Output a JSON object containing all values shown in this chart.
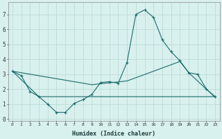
{
  "xlabel": "Humidex (Indice chaleur)",
  "bg_color": "#d8f0ee",
  "grid_color": "#b8d8d4",
  "line_color": "#1a6b6b",
  "xlim": [
    -0.5,
    23.5
  ],
  "ylim": [
    -0.1,
    7.8
  ],
  "xticks": [
    0,
    1,
    2,
    3,
    4,
    5,
    6,
    7,
    8,
    9,
    10,
    11,
    12,
    13,
    14,
    15,
    16,
    17,
    18,
    19,
    20,
    21,
    22,
    23
  ],
  "yticks": [
    0,
    1,
    2,
    3,
    4,
    5,
    6,
    7
  ],
  "series1_x": [
    0,
    1,
    2,
    3,
    4,
    5,
    6,
    7,
    8,
    9,
    10,
    11,
    12,
    13,
    14,
    15,
    16,
    17,
    18,
    19,
    20,
    21,
    22,
    23
  ],
  "series1_y": [
    3.2,
    2.9,
    1.85,
    1.5,
    1.0,
    0.45,
    0.45,
    1.05,
    1.3,
    1.65,
    2.45,
    2.5,
    2.4,
    3.8,
    7.0,
    7.3,
    6.8,
    5.3,
    4.5,
    3.9,
    3.1,
    3.0,
    2.0,
    1.5
  ],
  "series2_x": [
    0,
    3,
    23
  ],
  "series2_y": [
    3.2,
    1.5,
    1.5
  ],
  "series3_x": [
    0,
    9,
    13,
    19,
    20,
    23
  ],
  "series3_y": [
    3.2,
    2.3,
    2.55,
    3.85,
    3.1,
    1.45
  ]
}
